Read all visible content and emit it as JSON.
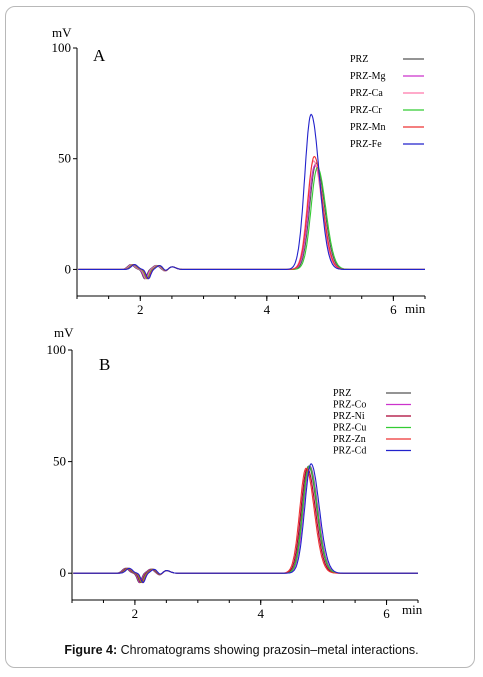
{
  "caption": {
    "label": "Figure 4:",
    "text": " Chromatograms showing prazosin–metal interactions."
  },
  "chart_data": [
    {
      "type": "line",
      "panel_label": "A",
      "y_unit_label": "mV",
      "x_unit_label": "min",
      "xlim": [
        1.0,
        6.5
      ],
      "ylim": [
        -12,
        100
      ],
      "x_ticks": [
        2,
        4,
        6
      ],
      "y_ticks": [
        0,
        50,
        100
      ],
      "legend_position": "top-right",
      "series": [
        {
          "name": "PRZ",
          "color": "#555555",
          "peak_time": 4.78,
          "peak_height": 48
        },
        {
          "name": "PRZ-Mg",
          "color": "#cc33cc",
          "peak_time": 4.76,
          "peak_height": 47
        },
        {
          "name": "PRZ-Ca",
          "color": "#ff77aa",
          "peak_time": 4.74,
          "peak_height": 49
        },
        {
          "name": "PRZ-Cr",
          "color": "#33cc33",
          "peak_time": 4.8,
          "peak_height": 46
        },
        {
          "name": "PRZ-Mn",
          "color": "#ee3333",
          "peak_time": 4.75,
          "peak_height": 51
        },
        {
          "name": "PRZ-Fe",
          "color": "#2222cc",
          "peak_time": 4.7,
          "peak_height": 70
        }
      ]
    },
    {
      "type": "line",
      "panel_label": "B",
      "y_unit_label": "mV",
      "x_unit_label": "min",
      "xlim": [
        1.0,
        6.5
      ],
      "ylim": [
        -12,
        100
      ],
      "x_ticks": [
        2,
        4,
        6
      ],
      "y_ticks": [
        0,
        50,
        100
      ],
      "legend_position": "top-right",
      "series": [
        {
          "name": "PRZ",
          "color": "#555555",
          "peak_time": 4.76,
          "peak_height": 48
        },
        {
          "name": "PRZ-Co",
          "color": "#cc33cc",
          "peak_time": 4.78,
          "peak_height": 48
        },
        {
          "name": "PRZ-Ni",
          "color": "#aa0033",
          "peak_time": 4.74,
          "peak_height": 47
        },
        {
          "name": "PRZ-Cu",
          "color": "#33cc33",
          "peak_time": 4.77,
          "peak_height": 48
        },
        {
          "name": "PRZ-Zn",
          "color": "#ee3333",
          "peak_time": 4.72,
          "peak_height": 47
        },
        {
          "name": "PRZ-Cd",
          "color": "#2222cc",
          "peak_time": 4.8,
          "peak_height": 49
        }
      ]
    }
  ]
}
